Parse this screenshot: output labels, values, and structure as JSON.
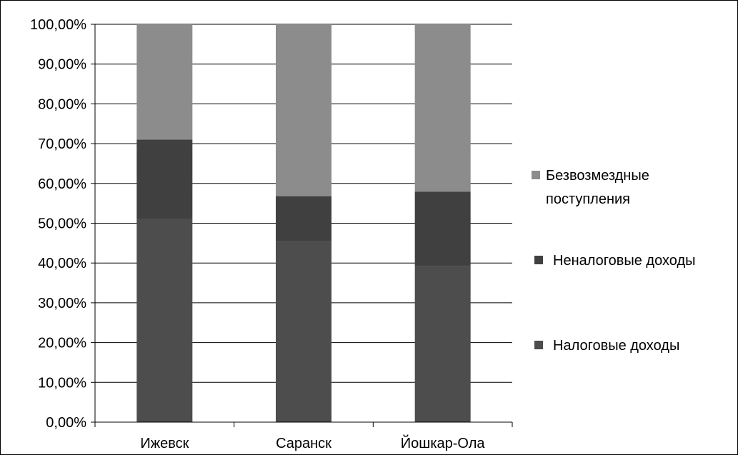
{
  "chart_data": {
    "type": "bar",
    "stacked": true,
    "percent": true,
    "categories": [
      "Ижевск",
      "Саранск",
      "Йошкар-Ола"
    ],
    "series": [
      {
        "name": "Налоговые доходы",
        "values": [
          51,
          45.5,
          39.2
        ],
        "color": "#4d4d4d"
      },
      {
        "name": "Неналоговые доходы",
        "values": [
          20,
          11.3,
          18.7
        ],
        "color": "#404040"
      },
      {
        "name": "Безвозмездные поступления",
        "values": [
          29,
          43.2,
          42.1
        ],
        "color": "#8c8c8c"
      }
    ],
    "y_ticks": [
      "0,00%",
      "10,00%",
      "20,00%",
      "30,00%",
      "40,00%",
      "50,00%",
      "60,00%",
      "70,00%",
      "80,00%",
      "90,00%",
      "100,00%"
    ],
    "ylim": [
      0,
      100
    ],
    "grid": true,
    "legend_position": "right",
    "legend": [
      {
        "lines": [
          "Безвозмездные",
          "поступления"
        ],
        "color": "#8c8c8c"
      },
      {
        "lines": [
          "Неналоговые доходы"
        ],
        "color": "#404040"
      },
      {
        "lines": [
          "Налоговые доходы"
        ],
        "color": "#4d4d4d"
      }
    ]
  }
}
